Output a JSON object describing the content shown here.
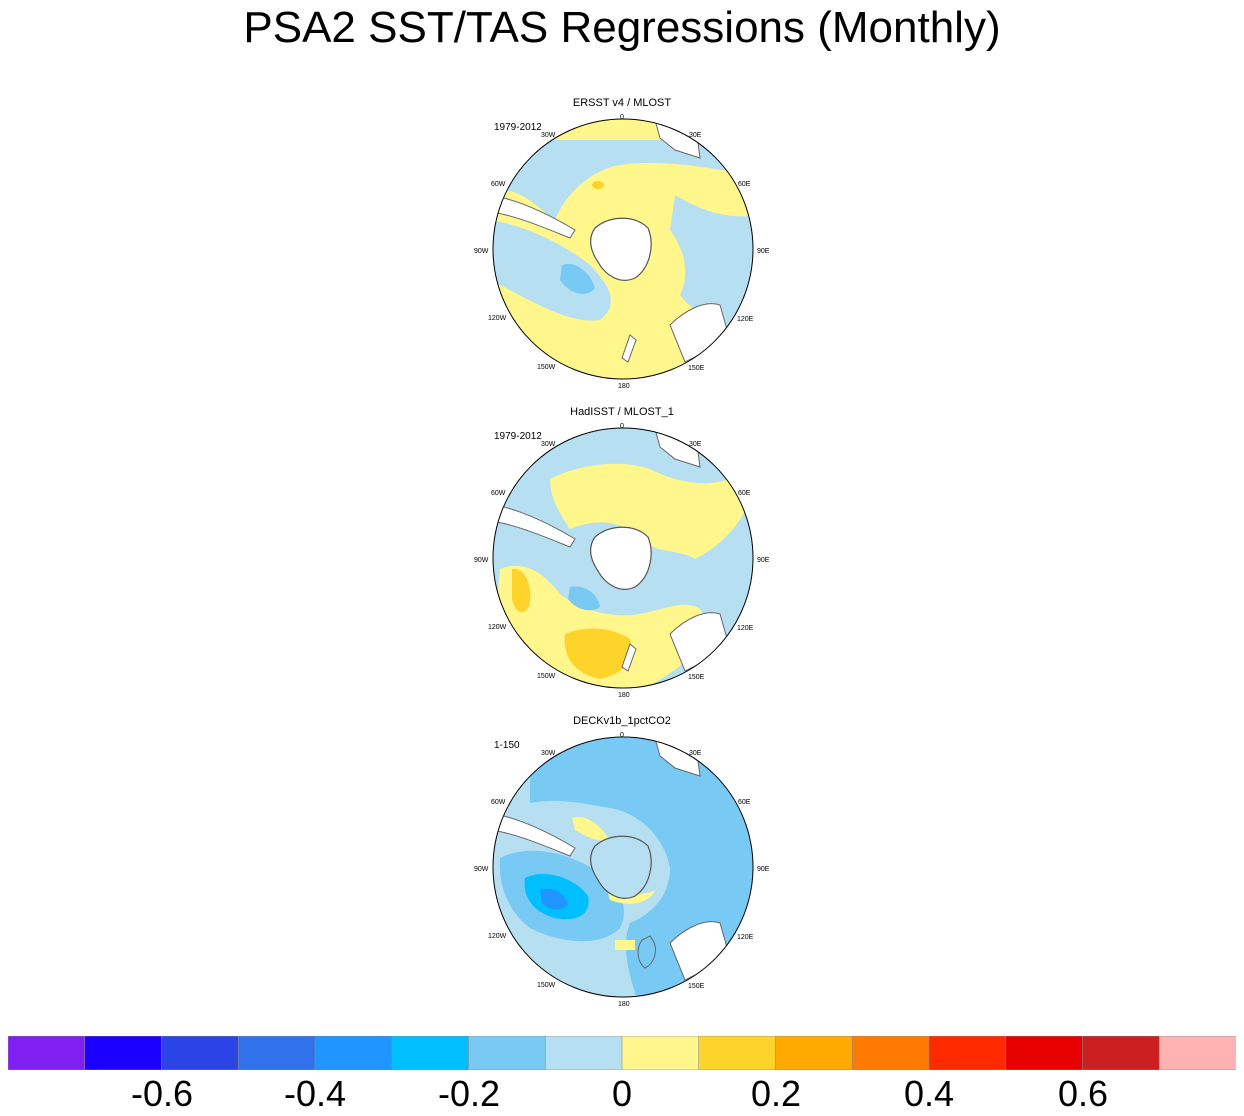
{
  "chart_data": {
    "type": "polar-stereographic-map-panels",
    "title": "PSA2 SST/TAS Regressions (Monthly)",
    "projection": "south polar stereographic",
    "longitude_labels": [
      "0",
      "30E",
      "60E",
      "90E",
      "120E",
      "150E",
      "180",
      "150W",
      "120W",
      "90W",
      "60W",
      "30W"
    ],
    "panels": [
      {
        "title": "ERSST v4 / MLOST",
        "period": "1979-2012",
        "dominant_value_range": [
          -0.2,
          0.1
        ],
        "min_shown": -0.3,
        "max_shown": 0.2
      },
      {
        "title": "HadISST / MLOST_1",
        "period": "1979-2012",
        "dominant_value_range": [
          -0.2,
          0.1
        ],
        "min_shown": -0.2,
        "max_shown": 0.2
      },
      {
        "title": "DECKv1b_1pctCO2",
        "period": "1-150",
        "dominant_value_range": [
          -0.2,
          0.0
        ],
        "min_shown": -0.5,
        "max_shown": 0.1
      }
    ],
    "colorbar": {
      "levels": [
        -0.7,
        -0.6,
        -0.5,
        -0.4,
        -0.3,
        -0.2,
        -0.1,
        0,
        0.1,
        0.2,
        0.3,
        0.4,
        0.5,
        0.6,
        0.7
      ],
      "colors": [
        "#7f1ff0",
        "#1b00ff",
        "#2c44e6",
        "#3172ec",
        "#1f96ff",
        "#00bfff",
        "#78c9f4",
        "#b6dff2",
        "#fff78c",
        "#ffd42a",
        "#ffaa00",
        "#ff7a00",
        "#ff2a00",
        "#e60000",
        "#cc1f1f",
        "#ffb2b2"
      ],
      "tick_labels": [
        "-0.6",
        "-0.4",
        "-0.2",
        "0",
        "0.2",
        "0.4",
        "0.6"
      ],
      "tick_values": [
        -0.6,
        -0.4,
        -0.2,
        0,
        0.2,
        0.4,
        0.6
      ]
    }
  }
}
